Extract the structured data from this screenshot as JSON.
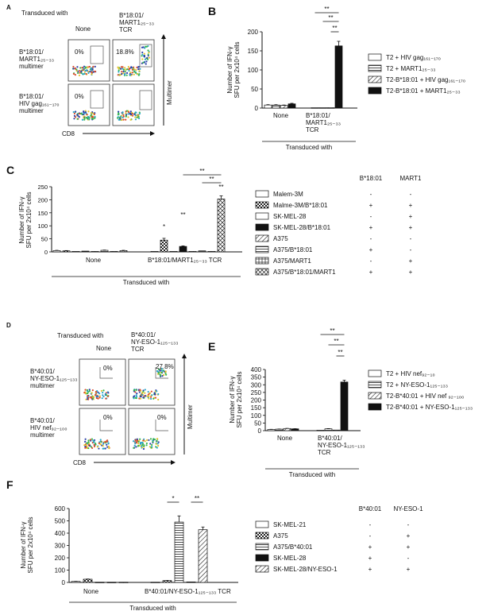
{
  "panels": {
    "A": {
      "letter": "A",
      "transduced_with": "Transduced with",
      "columns": [
        "None",
        "B*18:01/\nMART1₂₅₋₃₃\nTCR"
      ],
      "rows": [
        "B*18:01/\nMART1₂₅₋₃₃\nmultimer",
        "B*18:01/\nHIV gag₁₆₁₋₁₇₀\nmultimer"
      ],
      "percentages": [
        "0%",
        "18.8%",
        "0%",
        ""
      ],
      "xlabel": "CD8",
      "ylabel": "Multimer"
    },
    "D": {
      "letter": "D",
      "transduced_with": "Transduced with",
      "columns": [
        "None",
        "B*40:01/\nNY-ESO-1₁₂₅₋₁₃₃\nTCR"
      ],
      "rows": [
        "B*40:01/\nNY-ESO-1₁₂₅₋₁₃₃\nmultimer",
        "B*40:01/\nHIV nef₉₂₋₁₀₀\nmultimer"
      ],
      "percentages": [
        "0%",
        "27.8%",
        "0%",
        "0%"
      ],
      "xlabel": "CD8",
      "ylabel": "Multimer"
    }
  },
  "chart_data": [
    {
      "panel": "B",
      "type": "bar",
      "ylabel": "Number of IFN-γ\nSFU per 2x10⁴ cells",
      "ylim": [
        0,
        200
      ],
      "yticks": [
        0,
        50,
        100,
        150,
        200
      ],
      "groups": [
        "None",
        "B*18:01/\nMART1₂₅₋₃₃\nTCR"
      ],
      "series": [
        {
          "name": "T2 + HIV gag₁₆₁₋₁₇₀",
          "pattern": "open",
          "values": [
            8,
            1
          ],
          "errors": [
            1,
            0.5
          ]
        },
        {
          "name": "T2 + MART1₂₅₋₃₃",
          "pattern": "hlines",
          "values": [
            8,
            1
          ],
          "errors": [
            1,
            0.5
          ]
        },
        {
          "name": "T2-B*18:01 + HIV gag₁₆₁₋₁₇₀",
          "pattern": "diag",
          "values": [
            7,
            1
          ],
          "errors": [
            1,
            0.5
          ]
        },
        {
          "name": "T2-B*18:01 + MART1₂₅₋₃₃",
          "pattern": "solid",
          "values": [
            11,
            163
          ],
          "errors": [
            1.5,
            12
          ]
        }
      ],
      "significance": [
        "**",
        "**",
        "**"
      ],
      "xlabel": "Transduced with"
    },
    {
      "panel": "C",
      "type": "bar",
      "ylabel": "Number of IFN-γ\nSFU per 2x10⁴ cells",
      "ylim": [
        0,
        250
      ],
      "yticks": [
        0,
        50,
        100,
        150,
        200,
        250
      ],
      "groups": [
        "None",
        "B*18:01/MART1₂₅₋₃₃  TCR"
      ],
      "series": [
        {
          "name": "Malem-3M",
          "pattern": "open",
          "values": [
            5,
            2
          ],
          "errors": [
            1,
            0.5
          ]
        },
        {
          "name": "Malme-3M/B*18:01",
          "pattern": "checker",
          "values": [
            4,
            45
          ],
          "errors": [
            1,
            7
          ]
        },
        {
          "name": "SK-MEL-28",
          "pattern": "open",
          "values": [
            2,
            2
          ],
          "errors": [
            0.5,
            0.5
          ]
        },
        {
          "name": "SK-MEL-28/B*18:01",
          "pattern": "solid",
          "values": [
            3,
            21
          ],
          "errors": [
            0.5,
            2
          ]
        },
        {
          "name": "A375",
          "pattern": "diag",
          "values": [
            2,
            2
          ],
          "errors": [
            0.5,
            0.5
          ]
        },
        {
          "name": "A375/B*18:01",
          "pattern": "hlines",
          "values": [
            6,
            4
          ],
          "errors": [
            1,
            0.5
          ]
        },
        {
          "name": "A375/MART1",
          "pattern": "grid",
          "values": [
            2,
            2
          ],
          "errors": [
            0.5,
            0.5
          ]
        },
        {
          "name": "A375/B*18:01/MART1",
          "pattern": "cross",
          "values": [
            5,
            203
          ],
          "errors": [
            1,
            12
          ]
        }
      ],
      "table_headers": [
        "B*18:01",
        "MART1"
      ],
      "table_rows": [
        [
          "-",
          "-"
        ],
        [
          "+",
          "+"
        ],
        [
          "-",
          "+"
        ],
        [
          "+",
          "+"
        ],
        [
          "-",
          "-"
        ],
        [
          "+",
          "-"
        ],
        [
          "-",
          "+"
        ],
        [
          "+",
          "+"
        ]
      ],
      "significance": [
        "*",
        "**",
        "**",
        "**",
        "**"
      ],
      "xlabel": "Transduced with"
    },
    {
      "panel": "E",
      "type": "bar",
      "ylabel": "Number of IFN-γ\nSFU per 2x10⁴ cells",
      "ylim": [
        0,
        400
      ],
      "yticks": [
        0,
        50,
        100,
        150,
        200,
        250,
        300,
        350,
        400
      ],
      "groups": [
        "None",
        "B*40:01/\nNY-ESO-1₁₂₅₋₁₃₃\nTCR"
      ],
      "series": [
        {
          "name": "T2 + HIV nef₉₂₋₁₀",
          "pattern": "open",
          "values": [
            8,
            3
          ],
          "errors": [
            1,
            0.5
          ]
        },
        {
          "name": "T2 + NY-ESO-1₁₂₅₋₁₃₃",
          "pattern": "hlines",
          "values": [
            10,
            12
          ],
          "errors": [
            1,
            1.5
          ]
        },
        {
          "name": "T2-B*40:01 + HIV nef ₉₂₋₁₀₀",
          "pattern": "diag",
          "values": [
            14,
            4
          ],
          "errors": [
            1,
            0.5
          ]
        },
        {
          "name": "T2-B*40:01 + NY-ESO-1₁₂₅₋₁₃₃",
          "pattern": "solid",
          "values": [
            12,
            318
          ],
          "errors": [
            1,
            12
          ]
        }
      ],
      "significance": [
        "**",
        "**",
        "**"
      ],
      "xlabel": "Transduced with"
    },
    {
      "panel": "F",
      "type": "bar",
      "ylabel": "Number of IFN-γ\nSFU per 2x10⁴ cells",
      "ylim": [
        0,
        600
      ],
      "yticks": [
        0,
        100,
        200,
        300,
        400,
        500,
        600
      ],
      "groups": [
        "None",
        "B*40:01/NY-ESO-1₁₂₅₋₁₃₃  TCR"
      ],
      "series": [
        {
          "name": "SK-MEL-21",
          "pattern": "open",
          "values": [
            8,
            2
          ],
          "errors": [
            1,
            0.5
          ]
        },
        {
          "name": "A375",
          "pattern": "checker",
          "values": [
            26,
            15
          ],
          "errors": [
            2,
            1
          ]
        },
        {
          "name": "A375/B*40:01",
          "pattern": "hlines",
          "values": [
            2,
            490
          ],
          "errors": [
            0.5,
            50
          ]
        },
        {
          "name": "SK-MEL-28",
          "pattern": "solid",
          "values": [
            2,
            4
          ],
          "errors": [
            0.5,
            0.5
          ]
        },
        {
          "name": "SK-MEL-28/NY-ESO-1",
          "pattern": "diag",
          "values": [
            2,
            428
          ],
          "errors": [
            0.5,
            22
          ]
        }
      ],
      "table_headers": [
        "B*40:01",
        "NY-ESO-1"
      ],
      "table_rows": [
        [
          "-",
          "-"
        ],
        [
          "-",
          "+"
        ],
        [
          "+",
          "+"
        ],
        [
          "+",
          "-"
        ],
        [
          "+",
          "+"
        ]
      ],
      "significance": [
        "*",
        "**"
      ],
      "xlabel": "Transduced with"
    }
  ]
}
